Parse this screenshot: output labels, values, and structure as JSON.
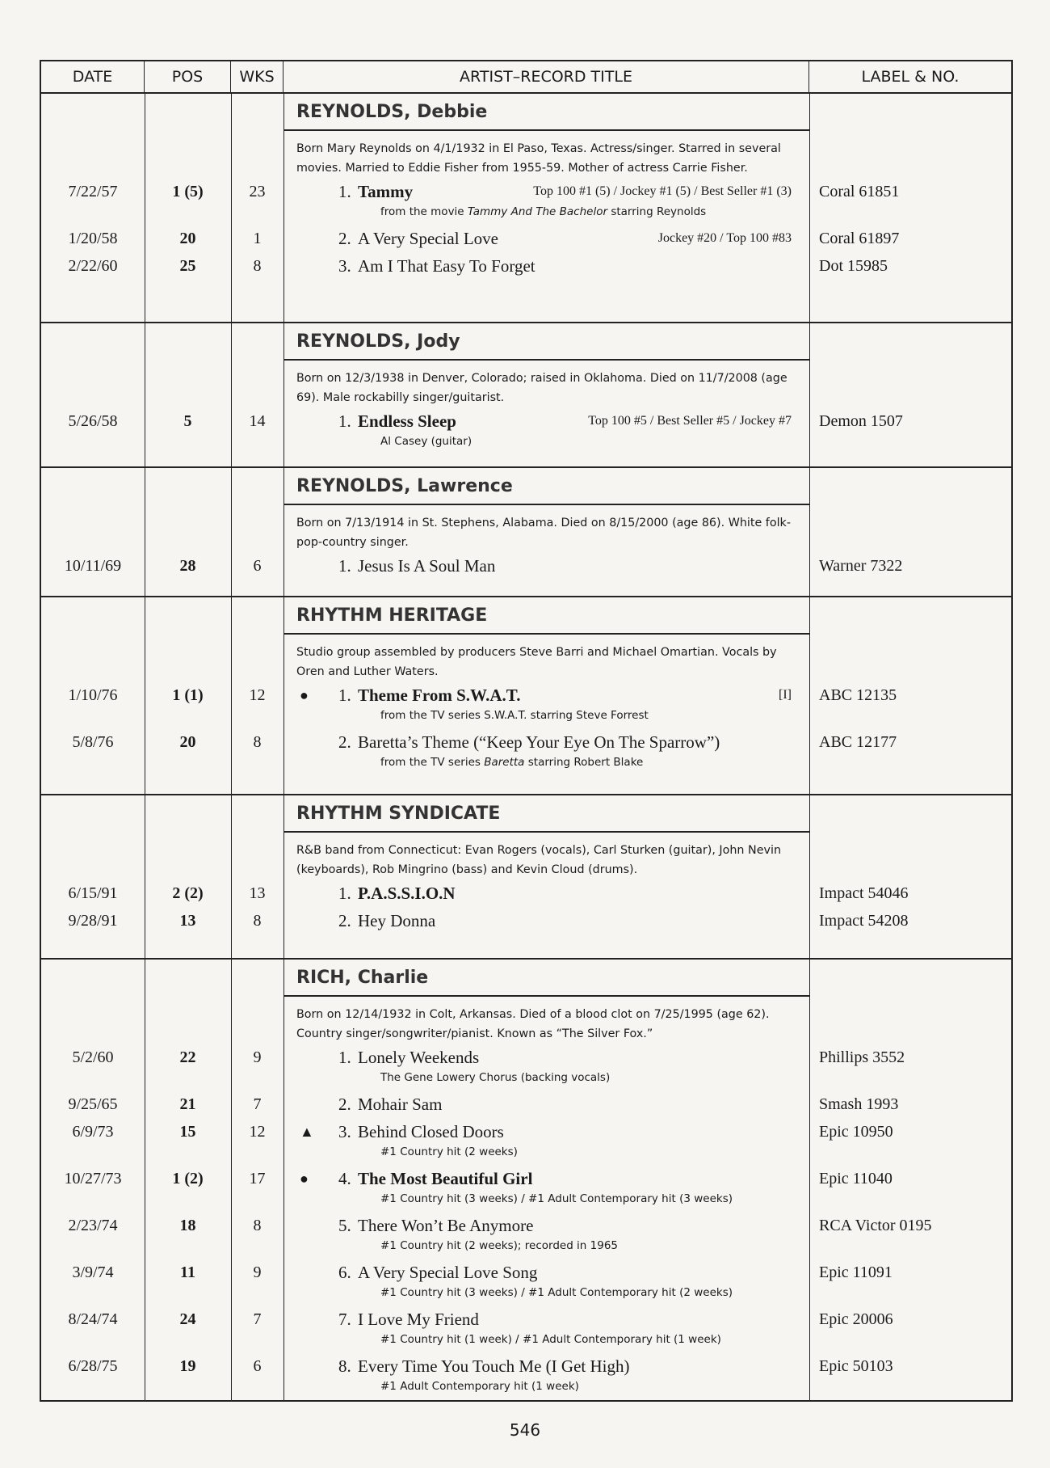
{
  "header": {
    "date": "DATE",
    "pos": "POS",
    "wks": "WKS",
    "title": "ARTIST–RECORD TITLE",
    "label": "LABEL & NO."
  },
  "sections": [
    {
      "artist": "REYNOLDS, Debbie",
      "bio": "Born Mary Reynolds on 4/1/1932 in El Paso, Texas. Actress/singer. Starred in several movies. Married to Eddie Fisher from 1955-59. Mother of actress Carrie Fisher.",
      "songs": [
        {
          "date": "7/22/57",
          "pos": "1 (5)",
          "wks": "23",
          "num": "1.",
          "title": "Tammy",
          "bold": true,
          "chart": "Top 100 #1 (5) / Jockey #1 (5) / Best Seller #1 (3)",
          "label": "Coral 61851",
          "note": {
            "pre": "from the movie ",
            "italic": "Tammy And The Bachelor",
            "post": " starring Reynolds"
          }
        },
        {
          "date": "1/20/58",
          "pos": "20",
          "wks": "1",
          "num": "2.",
          "title": "A Very Special Love",
          "chart": "Jockey #20 / Top 100 #83",
          "label": "Coral 61897"
        },
        {
          "date": "2/22/60",
          "pos": "25",
          "wks": "8",
          "num": "3.",
          "title": "Am I That Easy To Forget",
          "label": "Dot 15985"
        }
      ]
    },
    {
      "artist": "REYNOLDS, Jody",
      "bio": "Born on 12/3/1938 in Denver, Colorado; raised in Oklahoma. Died on 11/7/2008 (age 69). Male rockabilly singer/guitarist.",
      "songs": [
        {
          "date": "5/26/58",
          "pos": "5",
          "wks": "14",
          "num": "1.",
          "title": "Endless Sleep",
          "bold": true,
          "chart": "Top 100 #5 / Best Seller #5 / Jockey #7",
          "label": "Demon 1507",
          "note": {
            "pre": "Al Casey (guitar)"
          }
        }
      ]
    },
    {
      "artist": "REYNOLDS, Lawrence",
      "bio": "Born on 7/13/1914 in St. Stephens, Alabama. Died on 8/15/2000 (age 86). White folk-pop-country singer.",
      "songs": [
        {
          "date": "10/11/69",
          "pos": "28",
          "wks": "6",
          "num": "1.",
          "title": "Jesus Is A Soul Man",
          "label": "Warner 7322"
        }
      ]
    },
    {
      "artist": "RHYTHM HERITAGE",
      "bio": "Studio group assembled by producers Steve Barri and Michael Omartian. Vocals by Oren and Luther Waters.",
      "songs": [
        {
          "date": "1/10/76",
          "pos": "1 (1)",
          "wks": "12",
          "marker": "●",
          "marker_name": "gold-record-dot",
          "num": "1.",
          "title": "Theme From S.W.A.T.",
          "bold": true,
          "chart": "[I]",
          "label": "ABC 12135",
          "note": {
            "pre": "from the TV series S.W.A.T. starring Steve Forrest"
          }
        },
        {
          "date": "5/8/76",
          "pos": "20",
          "wks": "8",
          "num": "2.",
          "title": "Baretta’s Theme (“Keep Your Eye On The Sparrow”)",
          "label": "ABC 12177",
          "note": {
            "pre": "from the TV series ",
            "italic": "Baretta",
            "post": " starring Robert Blake"
          }
        }
      ]
    },
    {
      "artist": "RHYTHM SYNDICATE",
      "bio": "R&B band from Connecticut: Evan Rogers (vocals), Carl Sturken (guitar), John Nevin (keyboards), Rob Mingrino (bass) and Kevin Cloud (drums).",
      "songs": [
        {
          "date": "6/15/91",
          "pos": "2 (2)",
          "wks": "13",
          "num": "1.",
          "title": "P.A.S.S.I.O.N",
          "bold": true,
          "label": "Impact 54046"
        },
        {
          "date": "9/28/91",
          "pos": "13",
          "wks": "8",
          "num": "2.",
          "title": "Hey Donna",
          "label": "Impact 54208"
        }
      ]
    },
    {
      "artist": "RICH, Charlie",
      "bio": "Born on 12/14/1932 in Colt, Arkansas. Died of a blood clot on 7/25/1995 (age 62). Country singer/songwriter/pianist. Known as “The Silver Fox.”",
      "songs": [
        {
          "date": "5/2/60",
          "pos": "22",
          "wks": "9",
          "num": "1.",
          "title": "Lonely Weekends",
          "label": "Phillips 3552",
          "note": {
            "pre": "The Gene Lowery Chorus (backing vocals)"
          }
        },
        {
          "date": "9/25/65",
          "pos": "21",
          "wks": "7",
          "num": "2.",
          "title": "Mohair Sam",
          "label": "Smash 1993"
        },
        {
          "date": "6/9/73",
          "pos": "15",
          "wks": "12",
          "marker": "▲",
          "marker_name": "platinum-triangle",
          "num": "3.",
          "title": "Behind Closed Doors",
          "label": "Epic 10950",
          "note": {
            "pre": "#1 Country hit (2 weeks)"
          }
        },
        {
          "date": "10/27/73",
          "pos": "1 (2)",
          "wks": "17",
          "marker": "●",
          "marker_name": "gold-record-dot",
          "num": "4.",
          "title": "The Most Beautiful Girl",
          "bold": true,
          "label": "Epic 11040",
          "note": {
            "pre": "#1 Country hit (3 weeks) / #1 Adult Contemporary hit (3 weeks)"
          }
        },
        {
          "date": "2/23/74",
          "pos": "18",
          "wks": "8",
          "num": "5.",
          "title": "There Won’t Be Anymore",
          "label": "RCA Victor 0195",
          "note": {
            "pre": "#1 Country hit (2 weeks); recorded in 1965"
          }
        },
        {
          "date": "3/9/74",
          "pos": "11",
          "wks": "9",
          "num": "6.",
          "title": "A Very Special Love Song",
          "label": "Epic 11091",
          "note": {
            "pre": "#1 Country hit (3 weeks) / #1 Adult Contemporary hit (2 weeks)"
          }
        },
        {
          "date": "8/24/74",
          "pos": "24",
          "wks": "7",
          "num": "7.",
          "title": "I Love My Friend",
          "label": "Epic 20006",
          "note": {
            "pre": "#1 Country hit (1 week) / #1 Adult Contemporary hit (1 week)"
          }
        },
        {
          "date": "6/28/75",
          "pos": "19",
          "wks": "6",
          "num": "8.",
          "title": "Every Time You Touch Me (I Get High)",
          "label": "Epic 50103",
          "note": {
            "pre": "#1 Adult Contemporary hit (1 week)"
          }
        }
      ]
    }
  ],
  "page_number": "546"
}
